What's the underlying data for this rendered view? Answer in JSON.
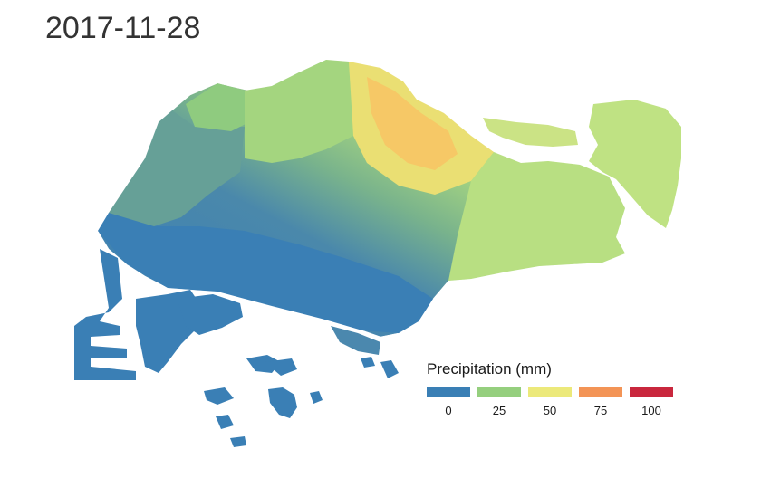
{
  "title": "2017-11-28",
  "legend": {
    "title": "Precipitation (mm)",
    "colors": [
      "#3a7fb5",
      "#95cf7e",
      "#ece97a",
      "#f39456",
      "#c9273d"
    ],
    "ticks": [
      "0",
      "25",
      "50",
      "75",
      "100"
    ]
  },
  "map": {
    "region": "Singapore",
    "fill_colors": {
      "west_coast": "#3a7fb5",
      "southwest": "#4b88ae",
      "west_central": "#66a097",
      "northwest": "#8fcb7f",
      "central_north": "#a4d57f",
      "northeast": "#f3d36a",
      "northeast_core": "#fbb969",
      "east": "#b8df82",
      "pulau_ubin": "#cbe385",
      "pulau_tekong": "#bfe283",
      "southern_islands": "#3a7fb5"
    }
  }
}
